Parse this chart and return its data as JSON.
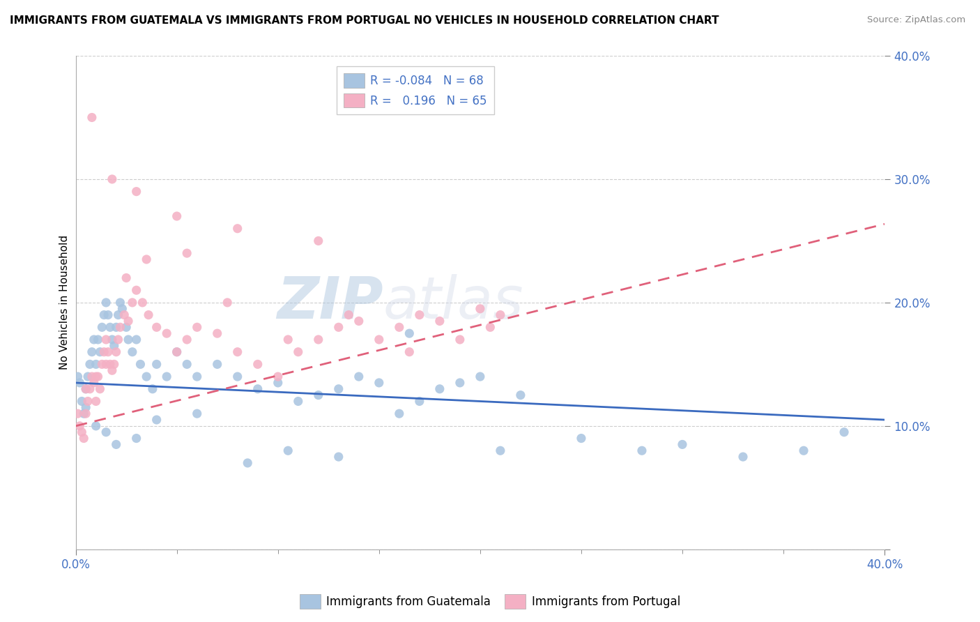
{
  "title": "IMMIGRANTS FROM GUATEMALA VS IMMIGRANTS FROM PORTUGAL NO VEHICLES IN HOUSEHOLD CORRELATION CHART",
  "source": "Source: ZipAtlas.com",
  "ylabel": "No Vehicles in Household",
  "legend_label1": "Immigrants from Guatemala",
  "legend_label2": "Immigrants from Portugal",
  "R1": "-0.084",
  "N1": "68",
  "R2": "0.196",
  "N2": "65",
  "color1": "#a8c4e0",
  "color2": "#f4b0c4",
  "line_color1": "#3a6abf",
  "line_color2": "#e0607a",
  "watermark_left": "ZIP",
  "watermark_right": "atlas",
  "xlim": [
    0,
    40
  ],
  "ylim": [
    0,
    40
  ],
  "ytick_vals": [
    0,
    10,
    20,
    30,
    40
  ],
  "ytick_labels": [
    "",
    "10.0%",
    "20.0%",
    "30.0%",
    "40.0%"
  ],
  "xtick_vals": [
    0,
    40
  ],
  "xtick_labels": [
    "0.0%",
    "40.0%"
  ],
  "guatemala_x": [
    0.1,
    0.2,
    0.3,
    0.4,
    0.5,
    0.6,
    0.7,
    0.8,
    0.9,
    1.0,
    1.1,
    1.2,
    1.3,
    1.4,
    1.5,
    1.6,
    1.7,
    1.8,
    1.9,
    2.0,
    2.1,
    2.2,
    2.3,
    2.5,
    2.6,
    2.8,
    3.0,
    3.2,
    3.5,
    3.8,
    4.0,
    4.5,
    5.0,
    5.5,
    6.0,
    7.0,
    8.0,
    9.0,
    10.0,
    11.0,
    12.0,
    13.0,
    14.0,
    15.0,
    16.0,
    17.0,
    18.0,
    19.0,
    20.0,
    21.0,
    22.0,
    25.0,
    28.0,
    30.0,
    33.0,
    36.0,
    38.0,
    0.5,
    1.0,
    1.5,
    2.0,
    3.0,
    4.0,
    6.0,
    8.5,
    10.5,
    13.0,
    16.5
  ],
  "guatemala_y": [
    14.0,
    13.5,
    12.0,
    11.0,
    13.0,
    14.0,
    15.0,
    16.0,
    17.0,
    15.0,
    17.0,
    16.0,
    18.0,
    19.0,
    20.0,
    19.0,
    18.0,
    17.0,
    16.5,
    18.0,
    19.0,
    20.0,
    19.5,
    18.0,
    17.0,
    16.0,
    17.0,
    15.0,
    14.0,
    13.0,
    15.0,
    14.0,
    16.0,
    15.0,
    14.0,
    15.0,
    14.0,
    13.0,
    13.5,
    12.0,
    12.5,
    13.0,
    14.0,
    13.5,
    11.0,
    12.0,
    13.0,
    13.5,
    14.0,
    8.0,
    12.5,
    9.0,
    8.0,
    8.5,
    7.5,
    8.0,
    9.5,
    11.5,
    10.0,
    9.5,
    8.5,
    9.0,
    10.5,
    11.0,
    7.0,
    8.0,
    7.5,
    17.5
  ],
  "portugal_x": [
    0.1,
    0.2,
    0.3,
    0.4,
    0.5,
    0.6,
    0.7,
    0.8,
    0.9,
    1.0,
    1.1,
    1.2,
    1.3,
    1.4,
    1.5,
    1.6,
    1.7,
    1.8,
    1.9,
    2.0,
    2.1,
    2.2,
    2.4,
    2.6,
    2.8,
    3.0,
    3.3,
    3.6,
    4.0,
    4.5,
    5.0,
    5.5,
    6.0,
    7.0,
    8.0,
    9.0,
    10.0,
    11.0,
    12.0,
    13.0,
    14.0,
    15.0,
    16.0,
    17.0,
    18.0,
    19.0,
    20.0,
    21.0,
    0.5,
    1.0,
    1.5,
    2.5,
    3.5,
    5.5,
    7.5,
    10.5,
    13.5,
    16.5,
    20.5,
    0.8,
    1.8,
    3.0,
    5.0,
    8.0,
    12.0
  ],
  "portugal_y": [
    11.0,
    10.0,
    9.5,
    9.0,
    11.0,
    12.0,
    13.0,
    14.0,
    13.5,
    12.0,
    14.0,
    13.0,
    15.0,
    16.0,
    17.0,
    16.0,
    15.0,
    14.5,
    15.0,
    16.0,
    17.0,
    18.0,
    19.0,
    18.5,
    20.0,
    21.0,
    20.0,
    19.0,
    18.0,
    17.5,
    16.0,
    17.0,
    18.0,
    17.5,
    16.0,
    15.0,
    14.0,
    16.0,
    17.0,
    18.0,
    18.5,
    17.0,
    18.0,
    19.0,
    18.5,
    17.0,
    19.5,
    19.0,
    13.0,
    14.0,
    15.0,
    22.0,
    23.5,
    24.0,
    20.0,
    17.0,
    19.0,
    16.0,
    18.0,
    35.0,
    30.0,
    29.0,
    27.0,
    26.0,
    25.0
  ]
}
